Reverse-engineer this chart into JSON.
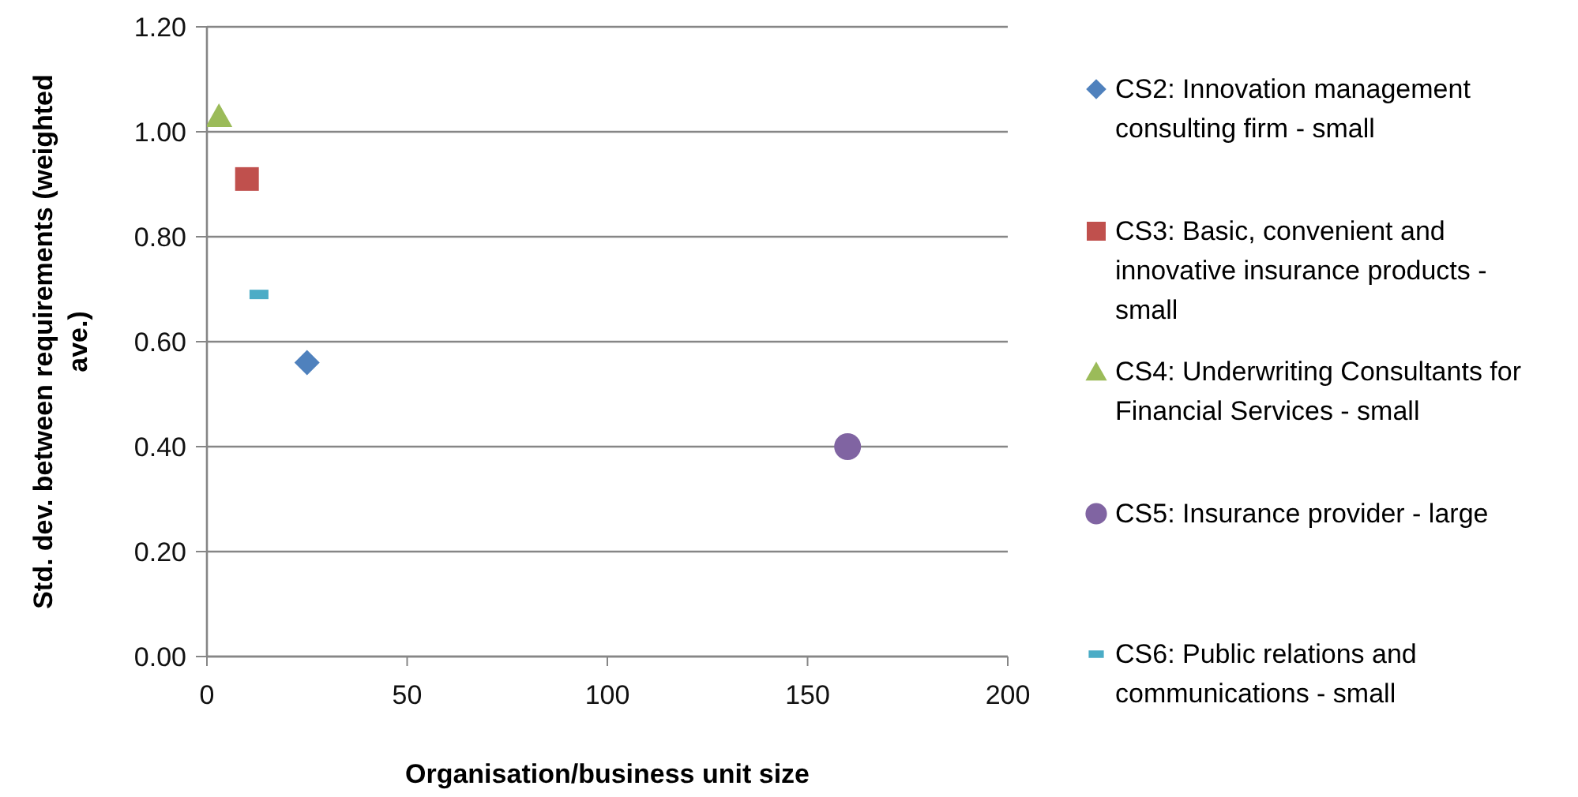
{
  "chart_data": {
    "type": "scatter",
    "xlabel": "Organisation/business unit size",
    "ylabel": "Std. dev. between requirements (weighted ave.)",
    "series": [
      {
        "name": "CS2: Innovation management consulting firm - small",
        "color": "#4f81bd",
        "marker": "diamond",
        "x": [
          25
        ],
        "values": [
          0.56
        ]
      },
      {
        "name": "CS3: Basic, convenient and innovative insurance products - small",
        "color": "#c0504d",
        "marker": "square",
        "x": [
          10
        ],
        "values": [
          0.91
        ]
      },
      {
        "name": "CS4: Underwriting Consultants for Financial Services - small",
        "color": "#9bbb59",
        "marker": "triangle",
        "x": [
          3
        ],
        "values": [
          1.03
        ]
      },
      {
        "name": "CS5: Insurance provider - large",
        "color": "#8064a2",
        "marker": "circle",
        "x": [
          160
        ],
        "values": [
          0.4
        ]
      },
      {
        "name": "CS6: Public relations and communications - small",
        "color": "#4bacc6",
        "x": [
          13
        ],
        "values": [
          0.69
        ]
      }
    ],
    "xlim": [
      0,
      200
    ],
    "xticks": [
      0,
      50,
      100,
      150,
      200
    ],
    "ylim": [
      0,
      1.2
    ],
    "yticks": [
      {
        "value": 0,
        "label": "0.00"
      },
      {
        "value": 0.2,
        "label": "0.20"
      },
      {
        "value": 0.4,
        "label": "0.40"
      },
      {
        "value": 0.6,
        "label": "0.60"
      },
      {
        "value": 0.8,
        "label": "0.80"
      },
      {
        "value": 1.0,
        "label": "1.00"
      },
      {
        "value": 1.2,
        "label": "1.20"
      }
    ],
    "grid": "y",
    "legend": "right"
  }
}
